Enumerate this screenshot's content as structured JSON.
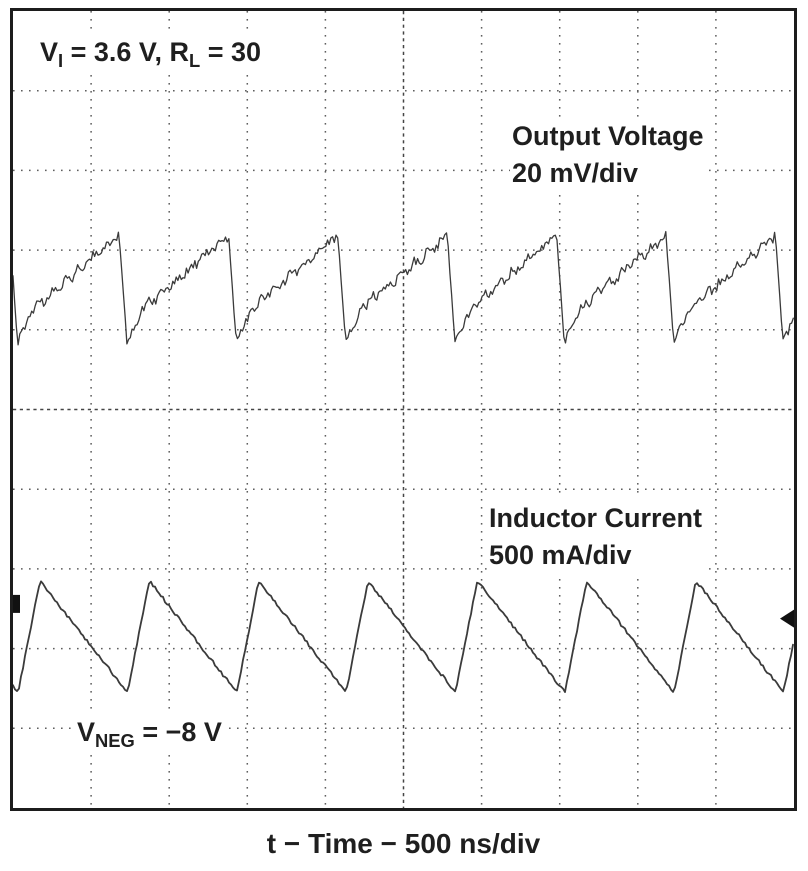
{
  "colors": {
    "trace": "#3b3b3b",
    "grid": "#5f5f5f",
    "text": "#1f1f1f",
    "border": "#1c1c1c"
  },
  "icons": {
    "trigger_arrow": "left-pointing-solid-triangle",
    "channel_marker": "left-edge-tick"
  },
  "labels": {
    "cond_v": "V",
    "cond_v_sub": "I",
    "cond_mid": " = 3.6 V, R",
    "cond_r_sub": "L",
    "cond_end": " = 30",
    "output_line1": "Output Voltage",
    "output_line2": "20 mV/div",
    "inductor_line1": "Inductor Current",
    "inductor_line2": "500 mA/div",
    "vneg_v": "V",
    "vneg_sub": "NEG",
    "vneg_end": " = −8 V",
    "time_axis": "t − Time − 500 ns/div"
  },
  "chart_data": {
    "type": "line",
    "title": "",
    "xlabel": "t − Time − 500 ns/div",
    "x_divisions": 10,
    "y_divisions": 10,
    "time_per_div_ns": 500,
    "grid": "dotted",
    "legend_position": "inline-annotations",
    "annotations": [
      "V_I = 3.6 V, R_L = 30",
      "Output Voltage 20 mV/div",
      "Inductor Current 500 mA/div",
      "V_NEG = −8 V"
    ],
    "series": [
      {
        "name": "Output Voltage",
        "units_per_div": "20 mV",
        "shape": "slow rising ripple ramp with sharp falling edge, undershoot spike and switching noise",
        "period_ns": 700,
        "approx_peak_to_peak_div": 1.3,
        "center_from_top_div": 3.4,
        "rise_fraction": 0.78,
        "fall_fraction": 0.07
      },
      {
        "name": "Inductor Current",
        "units_per_div": "500 mA",
        "shape": "sawtooth: slow linear decay, fast rising edge",
        "period_ns": 700,
        "peak_from_top_div": 7.15,
        "valley_from_top_div": 8.55,
        "decay_fraction": 0.8
      }
    ]
  }
}
